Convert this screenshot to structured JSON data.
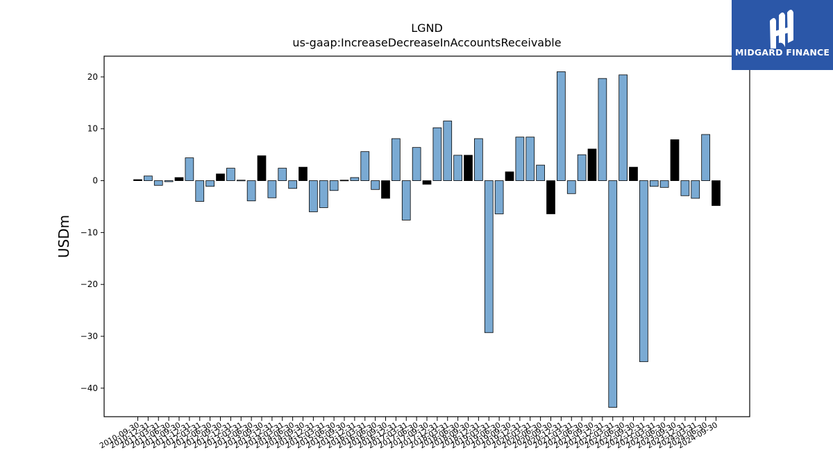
{
  "brand": {
    "name": "MIDGARD FINANCE",
    "color": "#2b57a8"
  },
  "colors": {
    "bar_default": "#7aaad3",
    "bar_highlight": "#000000",
    "axis": "#000000"
  },
  "chart_data": {
    "type": "bar",
    "title": "LGND",
    "subtitle": "us-gaap:IncreaseDecreaseInAccountsReceivable",
    "xlabel": "",
    "ylabel": "USDm",
    "ylim": [
      -45.5,
      24
    ],
    "yticks": [
      20,
      10,
      0,
      -10,
      -20,
      -30,
      -40
    ],
    "grid": false,
    "legend": "none",
    "highlight_rule": "bars for quarters ending 09-30 are drawn black",
    "categories": [
      "2010-09-30",
      "2010-12-31",
      "2011-03-31",
      "2011-06-30",
      "2011-09-30",
      "2011-12-31",
      "2012-03-31",
      "2012-06-30",
      "2012-09-30",
      "2012-12-31",
      "2013-03-31",
      "2013-06-30",
      "2013-09-30",
      "2013-12-31",
      "2014-03-31",
      "2014-06-30",
      "2014-09-30",
      "2014-12-31",
      "2015-03-31",
      "2015-06-30",
      "2015-09-30",
      "2015-12-31",
      "2016-03-31",
      "2016-06-30",
      "2016-09-30",
      "2016-12-31",
      "2017-03-31",
      "2017-06-30",
      "2017-09-30",
      "2017-12-31",
      "2018-03-31",
      "2018-06-30",
      "2018-09-30",
      "2018-12-31",
      "2019-03-31",
      "2019-06-30",
      "2019-09-30",
      "2019-12-31",
      "2020-03-31",
      "2020-06-30",
      "2020-09-30",
      "2020-12-31",
      "2021-03-31",
      "2021-06-30",
      "2021-09-30",
      "2021-12-31",
      "2022-03-31",
      "2022-06-30",
      "2022-09-30",
      "2022-12-31",
      "2023-03-31",
      "2023-06-30",
      "2023-09-30",
      "2023-12-31",
      "2024-03-31",
      "2024-06-30",
      "2024-09-30"
    ],
    "values": [
      0.2,
      0.9,
      -0.9,
      -0.2,
      0.6,
      4.4,
      -4.0,
      -1.1,
      1.3,
      2.4,
      0.1,
      -3.9,
      4.8,
      -3.3,
      2.4,
      -1.5,
      2.6,
      -6.0,
      -5.2,
      -1.9,
      0.1,
      0.6,
      5.6,
      -1.7,
      -3.4,
      8.1,
      -7.6,
      6.4,
      -0.7,
      10.2,
      11.5,
      4.9,
      4.9,
      8.1,
      -29.3,
      -6.4,
      1.7,
      8.4,
      8.4,
      3.0,
      -6.4,
      21.0,
      -2.5,
      5.0,
      6.1,
      19.7,
      -43.7,
      20.4,
      2.6,
      -34.9,
      -1.1,
      -1.3,
      7.9,
      -2.9,
      -3.4,
      8.9,
      -4.8
    ],
    "highlight": [
      true,
      false,
      false,
      false,
      true,
      false,
      false,
      false,
      true,
      false,
      false,
      false,
      true,
      false,
      false,
      false,
      true,
      false,
      false,
      false,
      true,
      false,
      false,
      false,
      true,
      false,
      false,
      false,
      true,
      false,
      false,
      false,
      true,
      false,
      false,
      false,
      true,
      false,
      false,
      false,
      true,
      false,
      false,
      false,
      true,
      false,
      false,
      false,
      true,
      false,
      false,
      false,
      true,
      false,
      false,
      false,
      true
    ]
  }
}
